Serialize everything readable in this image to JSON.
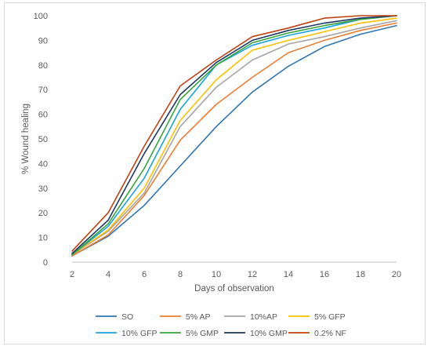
{
  "chart_data": {
    "type": "line",
    "title": "",
    "xlabel": "Days  of observation",
    "ylabel": "% Wound healing",
    "x": [
      2,
      4,
      6,
      8,
      10,
      12,
      14,
      16,
      18,
      20
    ],
    "xlim": [
      2,
      20
    ],
    "ylim": [
      0,
      100
    ],
    "yticks": [
      0,
      10,
      20,
      30,
      40,
      50,
      60,
      70,
      80,
      90,
      100
    ],
    "grid": false,
    "legend_position": "bottom",
    "series": [
      {
        "name": "SO",
        "color": "#2e75b6",
        "values": [
          2.5,
          10.5,
          23,
          39,
          55,
          69,
          79.5,
          87.5,
          92.5,
          96
        ]
      },
      {
        "name": "5% AP",
        "color": "#ed7d31",
        "values": [
          2.5,
          11,
          27,
          49.5,
          64,
          75,
          85,
          90,
          94,
          97
        ]
      },
      {
        "name": "10%AP",
        "color": "#a5a5a5",
        "values": [
          3,
          12.5,
          28,
          55,
          71,
          82,
          88.5,
          91.5,
          95,
          98
        ]
      },
      {
        "name": "5% GFP",
        "color": "#ffc000",
        "values": [
          3,
          13,
          30,
          57.5,
          74,
          86,
          90,
          93.5,
          97,
          99
        ]
      },
      {
        "name": "10% GFP",
        "color": "#19a3e0",
        "values": [
          3,
          14.5,
          34,
          62,
          80,
          88,
          92,
          95,
          98.5,
          100
        ]
      },
      {
        "name": "5% GMP",
        "color": "#3aa339",
        "values": [
          3,
          15.5,
          38,
          66,
          80,
          89,
          93,
          96,
          98.5,
          100
        ]
      },
      {
        "name": "10% GMP",
        "color": "#1f3864",
        "values": [
          3.5,
          17,
          44,
          68,
          81,
          90,
          94,
          97,
          99,
          100
        ]
      },
      {
        "name": "0.2% NF",
        "color": "#c0410e",
        "values": [
          4.5,
          20,
          47,
          71.5,
          82,
          91.5,
          95,
          99,
          100,
          100
        ]
      }
    ]
  }
}
